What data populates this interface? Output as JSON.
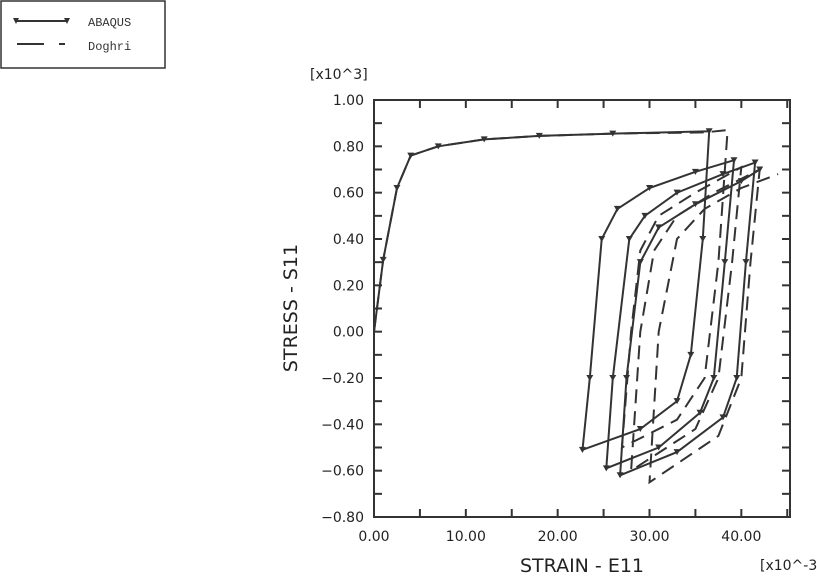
{
  "chart_data": {
    "type": "line",
    "xlabel": "STRAIN - E11",
    "ylabel": "STRESS - S11",
    "xscale_label": "[x10^-3]",
    "yscale_label": "[x10^3]",
    "xlim": [
      0,
      45.3
    ],
    "ylim": [
      -0.8,
      1.0
    ],
    "xticks": [
      "0.00",
      "10.00",
      "20.00",
      "30.00",
      "40.00"
    ],
    "xtick_values": [
      0,
      10,
      20,
      30,
      40
    ],
    "yticks": [
      "1.00",
      "0.80",
      "0.60",
      "0.40",
      "0.20",
      "0.00",
      "−0.20",
      "−0.40",
      "−0.60",
      "−0.80"
    ],
    "ytick_values": [
      1,
      0.8,
      0.6,
      0.4,
      0.2,
      0,
      -0.2,
      -0.4,
      -0.6,
      -0.8
    ],
    "legend": {
      "placement": "top-left",
      "entries": [
        "ABAQUS",
        "Doghri"
      ]
    },
    "series": [
      {
        "name": "ABAQUS",
        "style": "solid-triangle",
        "points": [
          [
            0,
            0
          ],
          [
            1,
            0.31
          ],
          [
            2.5,
            0.62
          ],
          [
            4,
            0.76
          ],
          [
            7,
            0.8
          ],
          [
            12,
            0.83
          ],
          [
            18,
            0.845
          ],
          [
            26,
            0.855
          ],
          [
            36.5,
            0.865
          ],
          [
            35.8,
            0.4
          ],
          [
            34.5,
            -0.1
          ],
          [
            33,
            -0.3
          ],
          [
            29,
            -0.42
          ],
          [
            22.7,
            -0.51
          ],
          [
            23.5,
            -0.2
          ],
          [
            24.8,
            0.4
          ],
          [
            26.5,
            0.53
          ],
          [
            30,
            0.62
          ],
          [
            35,
            0.69
          ],
          [
            39.2,
            0.74
          ],
          [
            38.2,
            0.3
          ],
          [
            37,
            -0.2
          ],
          [
            35.5,
            -0.35
          ],
          [
            31,
            -0.5
          ],
          [
            25.3,
            -0.59
          ],
          [
            26,
            -0.2
          ],
          [
            27.8,
            0.4
          ],
          [
            29.5,
            0.5
          ],
          [
            33,
            0.6
          ],
          [
            38,
            0.68
          ],
          [
            41.5,
            0.73
          ],
          [
            40.5,
            0.3
          ],
          [
            39.5,
            -0.2
          ],
          [
            38,
            -0.37
          ],
          [
            33,
            -0.52
          ],
          [
            26.8,
            -0.62
          ],
          [
            27.5,
            -0.2
          ],
          [
            29,
            0.3
          ],
          [
            31,
            0.45
          ],
          [
            35,
            0.55
          ],
          [
            40,
            0.65
          ],
          [
            42,
            0.7
          ]
        ]
      },
      {
        "name": "Doghri",
        "style": "dashed",
        "points": [
          [
            0,
            0
          ],
          [
            1,
            0.31
          ],
          [
            2.5,
            0.62
          ],
          [
            4,
            0.76
          ],
          [
            7,
            0.8
          ],
          [
            12,
            0.83
          ],
          [
            18,
            0.845
          ],
          [
            26,
            0.855
          ],
          [
            36,
            0.86
          ],
          [
            38.5,
            0.87
          ],
          [
            37.5,
            0.3
          ],
          [
            36,
            -0.2
          ],
          [
            33,
            -0.38
          ],
          [
            27,
            -0.5
          ],
          [
            28,
            0
          ],
          [
            29,
            0.35
          ],
          [
            31,
            0.5
          ],
          [
            35,
            0.6
          ],
          [
            40,
            0.71
          ],
          [
            39,
            0.3
          ],
          [
            37.5,
            -0.2
          ],
          [
            35,
            -0.42
          ],
          [
            28,
            -0.6
          ],
          [
            29,
            0
          ],
          [
            30.5,
            0.35
          ],
          [
            33,
            0.5
          ],
          [
            37,
            0.6
          ],
          [
            42,
            0.7
          ],
          [
            41,
            0.3
          ],
          [
            40,
            -0.2
          ],
          [
            37.5,
            -0.45
          ],
          [
            30,
            -0.65
          ],
          [
            31,
            0
          ],
          [
            33,
            0.4
          ],
          [
            36,
            0.53
          ],
          [
            40,
            0.62
          ],
          [
            44,
            0.68
          ]
        ]
      }
    ]
  }
}
